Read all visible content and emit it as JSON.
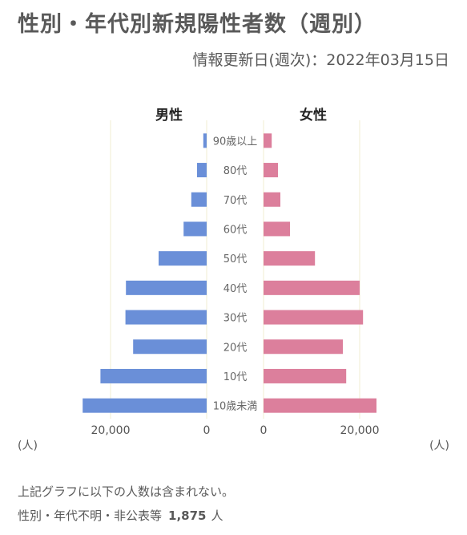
{
  "page": {
    "title": "性別・年代別新規陽性者数（週別）",
    "updated_label": "情報更新日(週次)：",
    "updated_date": "2022年03月15日",
    "note_line1": "上記グラフに以下の人数は含まれない。",
    "note_line2_label": "性別・年代不明・非公表等",
    "note_line2_count": "1,875",
    "note_line2_unit": "人"
  },
  "colors": {
    "male": "#6a8fd8",
    "female": "#dc7f9c",
    "grid": "#f0ecd0",
    "text": "#595959"
  },
  "chart_data": {
    "type": "bar",
    "layout": "population-pyramid",
    "categories": [
      "90歳以上",
      "80代",
      "70代",
      "60代",
      "50代",
      "40代",
      "30代",
      "20代",
      "10代",
      "10歳未満"
    ],
    "series": [
      {
        "name": "男性",
        "values": [
          700,
          2000,
          3200,
          4800,
          10000,
          16800,
          16900,
          15300,
          22100,
          25800
        ]
      },
      {
        "name": "女性",
        "values": [
          1700,
          3000,
          3500,
          5500,
          10700,
          20000,
          20700,
          16500,
          17200,
          23500
        ]
      }
    ],
    "male_axis": {
      "ticks": [
        20000,
        0
      ],
      "tick_labels": [
        "20,000",
        "0"
      ],
      "unit": "(人)"
    },
    "female_axis": {
      "ticks": [
        0,
        20000
      ],
      "tick_labels": [
        "0",
        "20,000"
      ],
      "unit": "(人)"
    },
    "xlim": [
      0,
      26000
    ],
    "legend": "top"
  }
}
